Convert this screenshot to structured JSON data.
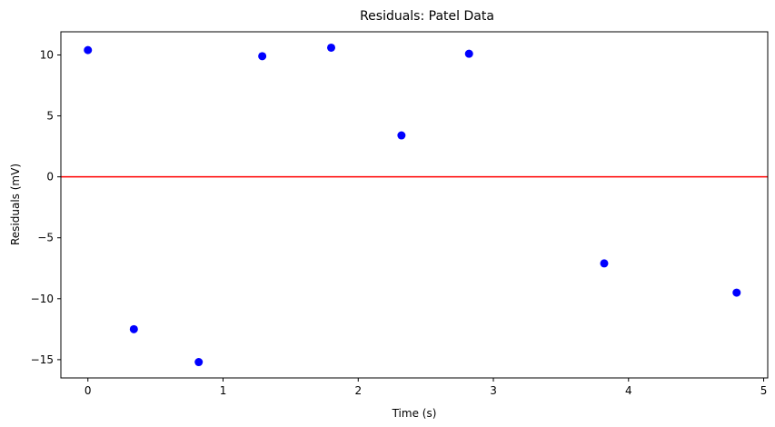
{
  "chart_data": {
    "type": "scatter",
    "title": "Residuals: Patel Data",
    "xlabel": "Time (s)",
    "ylabel": "Residuals (mV)",
    "xlim": [
      -0.2,
      5.03
    ],
    "ylim": [
      -16.5,
      11.9
    ],
    "xticks": [
      0,
      1,
      2,
      3,
      4,
      5
    ],
    "yticks": [
      -15,
      -10,
      -5,
      0,
      5,
      10
    ],
    "grid": false,
    "series": [
      {
        "color": "#0000ff",
        "x": [
          0.0,
          0.34,
          0.82,
          1.29,
          1.8,
          2.32,
          2.82,
          3.82,
          4.8
        ],
        "y": [
          10.4,
          -12.5,
          -15.2,
          9.9,
          10.6,
          3.4,
          10.1,
          -7.1,
          -9.5
        ]
      }
    ],
    "reference_line": {
      "y": 0,
      "color": "#ff0000"
    }
  }
}
